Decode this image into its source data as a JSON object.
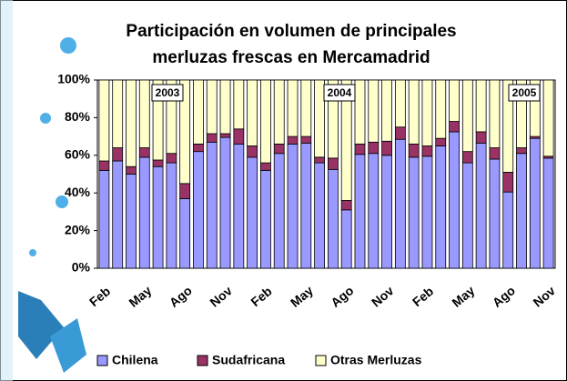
{
  "chart_data": {
    "type": "stacked_bar",
    "title": [
      "Participación en volumen de principales",
      "merluzas frescas en Mercamadrid"
    ],
    "categories": [
      "Feb",
      null,
      null,
      "May",
      null,
      null,
      "Ago",
      null,
      null,
      "Nov",
      null,
      null,
      "Feb",
      null,
      null,
      "May",
      null,
      null,
      "Ago",
      null,
      null,
      "Nov",
      null,
      null,
      "Feb",
      null,
      null,
      "May",
      null,
      null,
      "Ago",
      null,
      null,
      "Nov"
    ],
    "series": [
      {
        "name": "Chilena",
        "color": "#9999ff",
        "values": [
          52,
          57,
          50,
          59,
          54,
          56,
          37,
          62,
          67,
          69.5,
          66,
          59,
          52,
          61,
          66,
          66.5,
          56,
          52.5,
          31,
          60.5,
          61,
          60,
          68.5,
          59,
          59.5,
          65,
          72.5,
          56,
          66.5,
          58,
          40.5,
          61,
          69,
          58.5
        ]
      },
      {
        "name": "Sudafricana",
        "color": "#993366",
        "values": [
          5,
          7,
          4,
          5,
          3.5,
          5,
          8,
          4,
          4.5,
          2,
          8,
          6,
          4,
          5,
          4,
          3.5,
          3,
          6,
          5,
          5.5,
          6,
          7.5,
          6.5,
          7,
          5.5,
          4,
          5.5,
          6,
          6,
          6,
          10.5,
          3,
          1,
          1
        ]
      },
      {
        "name": "Otras Merluzas",
        "color": "#ffffcc",
        "values": [
          43,
          36,
          46,
          36,
          42.5,
          39,
          55,
          34,
          28.5,
          28.5,
          26,
          35,
          44,
          34,
          30,
          30,
          41,
          41.5,
          64,
          34,
          33,
          32.5,
          25,
          34,
          35,
          31,
          22,
          38,
          27.5,
          36,
          49,
          36,
          30,
          40.5
        ]
      }
    ],
    "annotations": [
      "2003",
      "2004",
      "2005"
    ],
    "ylim": [
      0,
      100
    ],
    "yticks": [
      {
        "value": 0,
        "label": "0%"
      },
      {
        "value": 20,
        "label": "20%"
      },
      {
        "value": 40,
        "label": "40%"
      },
      {
        "value": 60,
        "label": "60%"
      },
      {
        "value": 80,
        "label": "80%"
      },
      {
        "value": 100,
        "label": "100%"
      }
    ],
    "legend": "bottom"
  }
}
